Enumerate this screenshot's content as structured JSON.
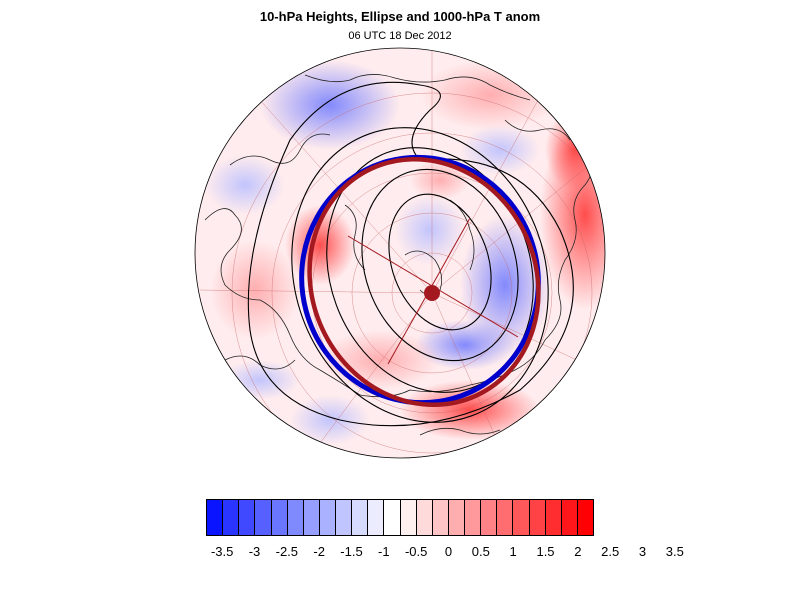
{
  "title": "10-hPa Heights, Ellipse and 1000-hPa T anom",
  "subtitle": "06 UTC 18 Dec 2012",
  "colorbar": {
    "colors": [
      "#0a14ff",
      "#2a35ff",
      "#4049ff",
      "#5560ff",
      "#6a76ff",
      "#808aff",
      "#969fff",
      "#aab2ff",
      "#c0c5ff",
      "#d6daff",
      "#ebedff",
      "#ffffff",
      "#fff0f0",
      "#ffdadb",
      "#ffc4c6",
      "#ffaeb0",
      "#ff999b",
      "#ff8386",
      "#ff6d70",
      "#ff585b",
      "#ff4245",
      "#ff2c30",
      "#ff161a",
      "#ff0004"
    ],
    "tick_labels": [
      "-3.5",
      "-3",
      "-2.5",
      "-2",
      "-1.5",
      "-1",
      "-0.5",
      "0",
      "0.5",
      "1",
      "1.5",
      "2",
      "2.5",
      "3",
      "3.5"
    ]
  },
  "ellipse_colors": {
    "analysis": "#0000cc",
    "fit": "#a3191f"
  }
}
